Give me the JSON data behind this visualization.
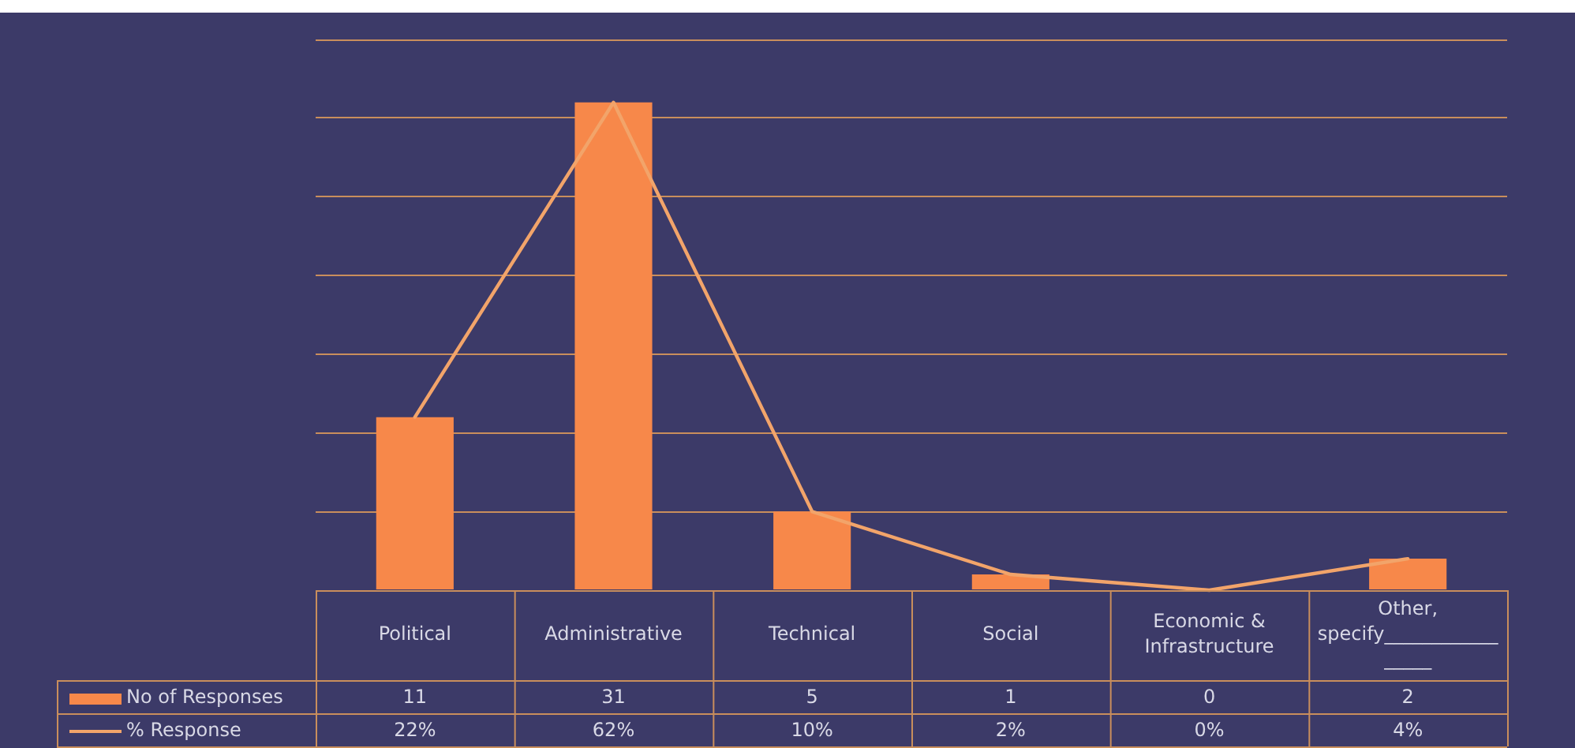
{
  "chart_data": {
    "type": "bar",
    "categories": [
      "Political",
      "Administrative",
      "Technical",
      "Social",
      "Economic & Infrastructure",
      "Other, specify_________________"
    ],
    "series": [
      {
        "name": "No of Responses",
        "color": "#f7884a",
        "values": [
          11,
          31,
          5,
          1,
          0,
          2
        ],
        "value_labels": [
          "11",
          "31",
          "5",
          "1",
          "0",
          "2"
        ]
      },
      {
        "name": "% Response",
        "type": "line",
        "axis": "y2",
        "color": "#f2a46a",
        "values": [
          22,
          62,
          10,
          2,
          0,
          4
        ],
        "value_labels": [
          "22%",
          "62%",
          "10%",
          "2%",
          "0%",
          "4%"
        ]
      }
    ],
    "ylim": [
      0,
      35
    ],
    "yticks": [
      {
        "value": 0,
        "label": null
      },
      {
        "value": 5,
        "label": null
      },
      {
        "value": 10,
        "label": null
      },
      {
        "value": 15,
        "label": null
      },
      {
        "value": 20,
        "label": null
      },
      {
        "value": 25,
        "label": null
      },
      {
        "value": 30,
        "label": null
      },
      {
        "value": 35,
        "label": null
      }
    ],
    "y2lim": [
      0,
      70
    ],
    "grid": "y",
    "legend": "bottom",
    "tick_labels": "x",
    "marker": "none",
    "line_style": "solid"
  }
}
